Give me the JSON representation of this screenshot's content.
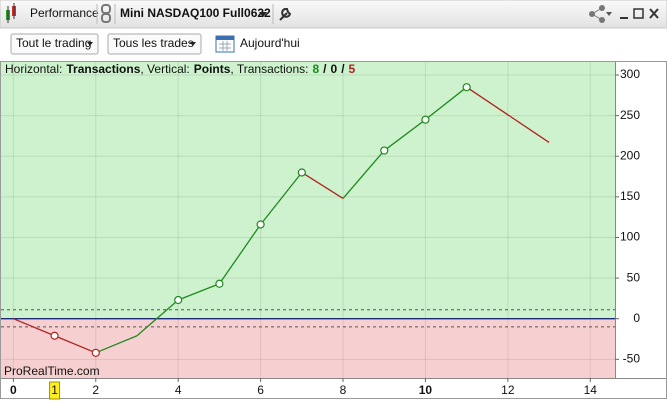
{
  "window": {
    "panel": "Performance",
    "instrument": "Mini NASDAQ100 Full0622"
  },
  "toolbar": {
    "scope": "Tout le trading",
    "trades": "Tous les trades",
    "date": "Aujourd'hui"
  },
  "chart_data": {
    "type": "line",
    "info": {
      "h_label": "Horizontal:",
      "h_value": "Transactions",
      "v_label": ", Vertical:",
      "v_value": "Points",
      "t_label": ", Transactions:",
      "winning": 8,
      "separator": "/",
      "neutral": 0,
      "losing": 5
    },
    "x": [
      0,
      1,
      2,
      3,
      4,
      5,
      6,
      7,
      8,
      9,
      10,
      11,
      13
    ],
    "series": [
      {
        "values": [
          0,
          -21,
          -42,
          -21,
          23,
          43,
          116,
          180,
          148,
          207,
          245,
          285,
          217
        ],
        "markers": [
          false,
          true,
          true,
          false,
          true,
          true,
          true,
          true,
          false,
          true,
          true,
          true,
          false
        ]
      }
    ],
    "up_color": "#1e8a1e",
    "down_color": "#b22222",
    "xlim": [
      -0.3,
      14.6
    ],
    "xticks": [
      0,
      2,
      4,
      6,
      8,
      10,
      12,
      14
    ],
    "bold_xticks": [
      0,
      10
    ],
    "highlight_x": 1,
    "ylim": [
      -73,
      316
    ],
    "yticks": [
      -50,
      0,
      50,
      100,
      150,
      200,
      250,
      300
    ],
    "dashed_levels": [
      11,
      -10
    ],
    "grid": true,
    "watermark": "ProRealTime.com"
  }
}
